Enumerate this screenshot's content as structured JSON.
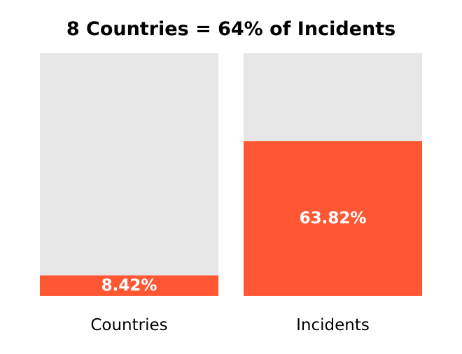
{
  "chart_data": {
    "type": "bar",
    "title": "8 Countries = 64% of Incidents",
    "categories": [
      "Countries",
      "Incidents"
    ],
    "values": [
      8.42,
      63.82
    ],
    "value_labels": [
      "8.42%",
      "63.82%"
    ],
    "ylim": [
      0,
      100
    ],
    "grid": false,
    "legend": "none"
  },
  "colors": {
    "fill": "#ff5733",
    "background_track": "#e6e6e6"
  }
}
